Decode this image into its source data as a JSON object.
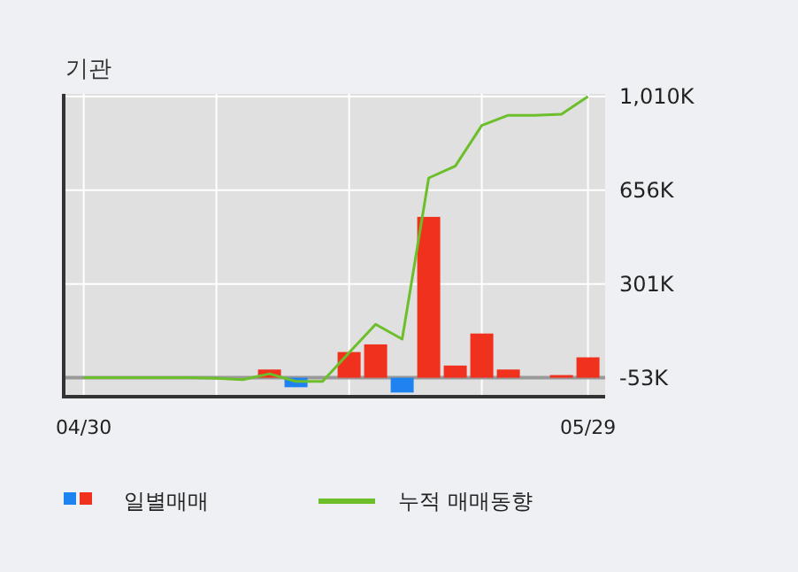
{
  "chart_data": {
    "type": "bar",
    "title": "기관",
    "categories": [
      "04/30",
      null,
      null,
      null,
      null,
      null,
      null,
      null,
      null,
      null,
      null,
      null,
      null,
      null,
      null,
      null,
      null,
      null,
      null,
      "05/29"
    ],
    "series": [
      {
        "name": "일별매매",
        "base": [
          null,
          null,
          null,
          null,
          null,
          null,
          null,
          -53,
          -53,
          null,
          -53,
          -53,
          -53,
          -53,
          -53,
          -53,
          -53,
          null,
          -53,
          -53
        ],
        "values": [
          null,
          null,
          null,
          null,
          null,
          null,
          null,
          31,
          -36,
          null,
          97,
          126,
          -56,
          608,
          46,
          167,
          31,
          null,
          10,
          77
        ],
        "colors": [
          null,
          null,
          null,
          null,
          null,
          null,
          null,
          "#f0311d",
          "#1e82f0",
          null,
          "#f0311d",
          "#f0311d",
          "#1e82f0",
          "#f0311d",
          "#f0311d",
          "#f0311d",
          "#f0311d",
          null,
          "#f0311d",
          "#f0311d"
        ]
      },
      {
        "type": "line",
        "name": "누적 매매동향",
        "color": "#6cbf2a",
        "values": [
          -53,
          -53,
          -53,
          -53,
          -53,
          -55,
          -60,
          -38,
          -67,
          -67,
          42,
          149,
          93,
          702,
          747,
          901,
          939,
          939,
          943,
          1010
        ]
      }
    ],
    "ylim": [
      -118,
      1020
    ],
    "yticks": [
      {
        "value": 1010,
        "label": "1,010K"
      },
      {
        "value": 656,
        "label": "656K"
      },
      {
        "value": 301,
        "label": "301K"
      },
      {
        "value": -53,
        "label": "-53K"
      }
    ],
    "ref_lines": [
      {
        "axis": "y",
        "value": -53,
        "color": "#999999"
      }
    ],
    "grid": true,
    "legend": "bottom"
  }
}
